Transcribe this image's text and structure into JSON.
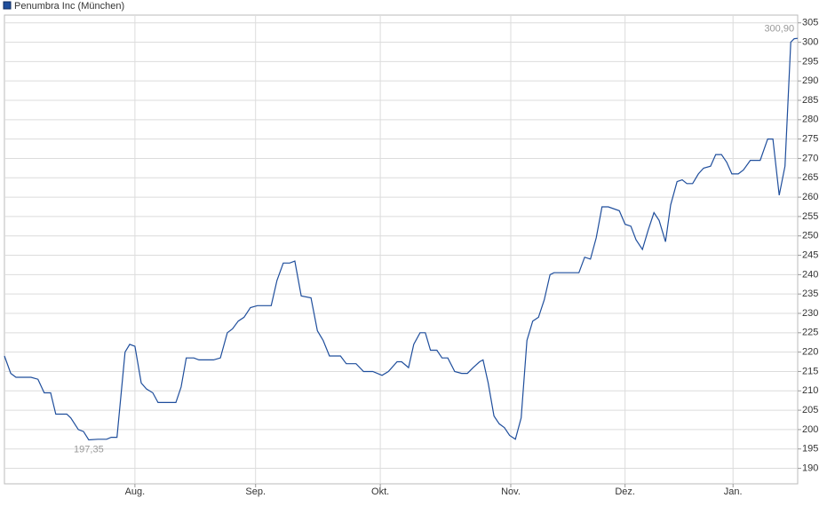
{
  "chart_data": {
    "type": "line",
    "legend_position": "top-left",
    "grid": true,
    "series": [
      {
        "name": "Penumbra Inc (München)",
        "color": "#1f4e9c",
        "x": [
          0,
          1.1,
          2,
          4.6,
          5.8,
          6.9,
          8,
          8.9,
          10.8,
          11.5,
          12.8,
          13.7,
          14.6,
          16.2,
          17.7,
          18.5,
          19.5,
          20.9,
          21.7,
          22.6,
          23.7,
          24.6,
          25.7,
          26.6,
          29.7,
          30.6,
          31.5,
          32.8,
          33.7,
          36.2,
          37.4,
          38.6,
          39.5,
          40.5,
          41.5,
          42.6,
          43.8,
          46.2,
          47.2,
          48.3,
          49.4,
          50.3,
          51.4,
          53.1,
          54.2,
          55.2,
          56.3,
          58.2,
          59.2,
          60.9,
          62.2,
          63.8,
          65.4,
          66.5,
          68,
          68.8,
          70,
          70.9,
          72,
          72.9,
          73.8,
          74.9,
          75.8,
          76.8,
          78,
          79.2,
          80.2,
          81.2,
          82.3,
          82.9,
          83.8,
          84.8,
          85.7,
          86.6,
          87.5,
          88.5,
          89.5,
          90.5,
          91.5,
          92.5,
          93.5,
          94.5,
          95.2,
          96.5,
          99.5,
          100.5,
          101.5,
          102.5,
          103.5,
          104.6,
          106.5,
          107.5,
          108.5,
          109.4,
          110.5,
          111.5,
          112.5,
          113.4,
          114.5,
          115.4,
          116.5,
          117.4,
          118.2,
          119.2,
          120.2,
          121.1,
          122.3,
          123.2,
          124.2,
          125.1,
          126,
          127.1,
          128,
          129.2,
          130.9,
          132.2,
          133.1,
          134.2,
          135.2,
          136.2,
          136.8,
          137.4
        ],
        "values": [
          219,
          214.5,
          213.5,
          213.5,
          213,
          209.5,
          209.5,
          204,
          204,
          203,
          200,
          199.5,
          197.35,
          197.5,
          197.5,
          198,
          198,
          220,
          222,
          221.5,
          212,
          210.5,
          209.5,
          207,
          207,
          211,
          218.5,
          218.5,
          218,
          218,
          218.5,
          225,
          226,
          228,
          229,
          231.5,
          232,
          232,
          238.5,
          243,
          243,
          243.5,
          234.5,
          234,
          225.5,
          223,
          219,
          219,
          217,
          217,
          215,
          215,
          214,
          215,
          217.5,
          217.5,
          216,
          222,
          225,
          225,
          220.5,
          220.5,
          218.5,
          218.5,
          215,
          214.5,
          214.5,
          216,
          217.5,
          218,
          212,
          203.5,
          201.5,
          200.5,
          198.5,
          197.5,
          203,
          223,
          228,
          229,
          233.5,
          240,
          240.5,
          240.5,
          240.5,
          244.5,
          244,
          249.5,
          257.5,
          257.5,
          256.5,
          253,
          252.5,
          249,
          246.5,
          251.5,
          256,
          254,
          248.5,
          258,
          264,
          264.5,
          263.5,
          263.5,
          266,
          267.5,
          268,
          271,
          271,
          269,
          266,
          266,
          267,
          269.5,
          269.5,
          275,
          275,
          260.5,
          268,
          300,
          300.9,
          301
        ]
      }
    ],
    "annotations": [
      {
        "x": 136.8,
        "value": 300.9,
        "label": "300,90"
      },
      {
        "x": 14.6,
        "value": 197.35,
        "label": "197,35"
      }
    ],
    "xlim": [
      0,
      137.4
    ],
    "xticks": [
      {
        "value": 22.6,
        "label": "Aug."
      },
      {
        "value": 43.5,
        "label": "Sep."
      },
      {
        "value": 65.1,
        "label": "Okt."
      },
      {
        "value": 87.7,
        "label": "Nov."
      },
      {
        "value": 107.5,
        "label": "Dez."
      },
      {
        "value": 126.2,
        "label": "Jan."
      }
    ],
    "ylim": [
      186,
      307
    ],
    "yticks": [
      190,
      195,
      200,
      205,
      210,
      215,
      220,
      225,
      230,
      235,
      240,
      245,
      250,
      255,
      260,
      265,
      270,
      275,
      280,
      285,
      290,
      295,
      300,
      305
    ]
  }
}
